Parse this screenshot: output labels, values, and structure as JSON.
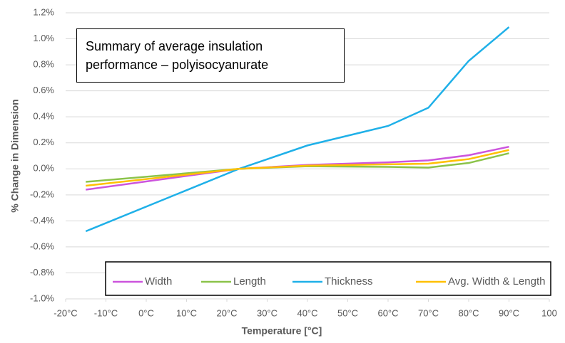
{
  "chart_data": {
    "type": "line",
    "annotation": "Summary of average insulation performance – polyisocyanurate",
    "xlabel": "Temperature [°C]",
    "ylabel": "% Change in Dimension",
    "x": [
      -15,
      23,
      40,
      60,
      70,
      80,
      90
    ],
    "series": [
      {
        "name": "Width",
        "color": "#cc55dd",
        "values": [
          -0.16,
          0,
          0.03,
          0.05,
          0.065,
          0.105,
          0.17
        ]
      },
      {
        "name": "Length",
        "color": "#8bc34a",
        "values": [
          -0.1,
          0,
          0.02,
          0.015,
          0.01,
          0.045,
          0.12
        ]
      },
      {
        "name": "Thickness",
        "color": "#1fb0e8",
        "values": [
          -0.48,
          0,
          0.18,
          0.33,
          0.47,
          0.83,
          1.09
        ]
      },
      {
        "name": "Avg. Width & Length",
        "color": "#ffc000",
        "values": [
          -0.13,
          0,
          0.025,
          0.035,
          0.04,
          0.075,
          0.145
        ]
      }
    ],
    "xlim": [
      -20,
      100
    ],
    "xticks": [
      {
        "value": -20,
        "label": "-20°C"
      },
      {
        "value": -10,
        "label": "-10°C"
      },
      {
        "value": 0,
        "label": "0°C"
      },
      {
        "value": 10,
        "label": "10°C"
      },
      {
        "value": 20,
        "label": "20°C"
      },
      {
        "value": 30,
        "label": "30°C"
      },
      {
        "value": 40,
        "label": "40°C"
      },
      {
        "value": 50,
        "label": "50°C"
      },
      {
        "value": 60,
        "label": "60°C"
      },
      {
        "value": 70,
        "label": "70°C"
      },
      {
        "value": 80,
        "label": "80°C"
      },
      {
        "value": 90,
        "label": "90°C"
      },
      100
    ],
    "ylim": [
      -1.0,
      1.2
    ],
    "yticks": [
      {
        "value": -1.0,
        "label": "-1.0%"
      },
      {
        "value": -0.8,
        "label": "-0.8%"
      },
      {
        "value": -0.6,
        "label": "-0.6%"
      },
      {
        "value": -0.4,
        "label": "-0.4%"
      },
      {
        "value": -0.2,
        "label": "-0.2%"
      },
      {
        "value": 0,
        "label": "0.0%"
      },
      {
        "value": 0.2,
        "label": "0.2%"
      },
      {
        "value": 0.4,
        "label": "0.4%"
      },
      {
        "value": 0.6,
        "label": "0.6%"
      },
      {
        "value": 0.8,
        "label": "0.8%"
      },
      {
        "value": 1.0,
        "label": "1.0%"
      },
      {
        "value": 1.2,
        "label": "1.2%"
      }
    ],
    "grid": true,
    "legend": "bottom"
  }
}
